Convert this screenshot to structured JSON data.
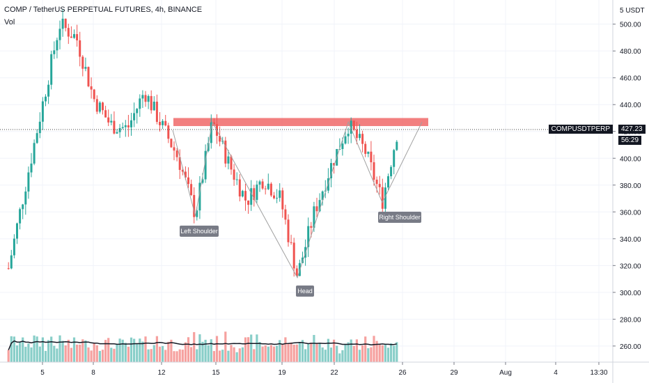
{
  "header": {
    "title": "COMP / TetherUS PERPETUAL FUTURES, 4h, BINANCE",
    "indicator": "Vol"
  },
  "price_axis": {
    "unit_label": "5 USDT",
    "ticks": [
      "500.00",
      "480.00",
      "460.00",
      "440.00",
      "420.00",
      "400.00",
      "380.00",
      "360.00",
      "340.00",
      "320.00",
      "300.00",
      "280.00",
      "260.00"
    ]
  },
  "time_axis": {
    "ticks": [
      "5",
      "8",
      "12",
      "15",
      "19",
      "22",
      "26",
      "29",
      "Aug",
      "4",
      "13:30"
    ]
  },
  "symbol_tag": "COMPUSDTPERP",
  "last_price": "427.23",
  "countdown": "56:29",
  "colors": {
    "up": "#26a69a",
    "down": "#ef5350",
    "resistance": "#f06868",
    "pattern_line": "#a0a0a0",
    "ma": "#131722"
  },
  "annotations": {
    "left_shoulder": "Left Shoulder",
    "head": "Head",
    "right_shoulder": "Right Shoulder"
  },
  "chart_data": {
    "type": "candlestick",
    "title": "COMP / TetherUS PERPETUAL FUTURES, 4h, BINANCE",
    "pattern": "inverse head and shoulders",
    "y_range": [
      248,
      518
    ],
    "resistance_zone": [
      424,
      430
    ],
    "last_price": 427.23,
    "key_points": [
      {
        "label": "Left Shoulder",
        "date": "14",
        "price": 357
      },
      {
        "label": "Head",
        "date": "20",
        "price": 311
      },
      {
        "label": "Right Shoulder",
        "date": "25",
        "price": 367
      },
      {
        "label": "neckline peak",
        "date": "15",
        "price": 427
      },
      {
        "label": "neckline peak",
        "date": "23",
        "price": 427
      }
    ],
    "close_path": [
      {
        "date": "3",
        "close": 318
      },
      {
        "date": "4",
        "close": 380
      },
      {
        "date": "5",
        "close": 440
      },
      {
        "date": "6",
        "close": 500
      },
      {
        "date": "7",
        "close": 490
      },
      {
        "date": "8",
        "close": 445
      },
      {
        "date": "9",
        "close": 425
      },
      {
        "date": "10",
        "close": 422
      },
      {
        "date": "11",
        "close": 450
      },
      {
        "date": "12",
        "close": 425
      },
      {
        "date": "13",
        "close": 400
      },
      {
        "date": "14",
        "close": 358
      },
      {
        "date": "15",
        "close": 427
      },
      {
        "date": "16",
        "close": 395
      },
      {
        "date": "17",
        "close": 368
      },
      {
        "date": "18",
        "close": 385
      },
      {
        "date": "19",
        "close": 370
      },
      {
        "date": "20",
        "close": 312
      },
      {
        "date": "21",
        "close": 360
      },
      {
        "date": "22",
        "close": 395
      },
      {
        "date": "23",
        "close": 425
      },
      {
        "date": "24",
        "close": 405
      },
      {
        "date": "25",
        "close": 368
      },
      {
        "date": "26",
        "close": 427
      }
    ]
  }
}
